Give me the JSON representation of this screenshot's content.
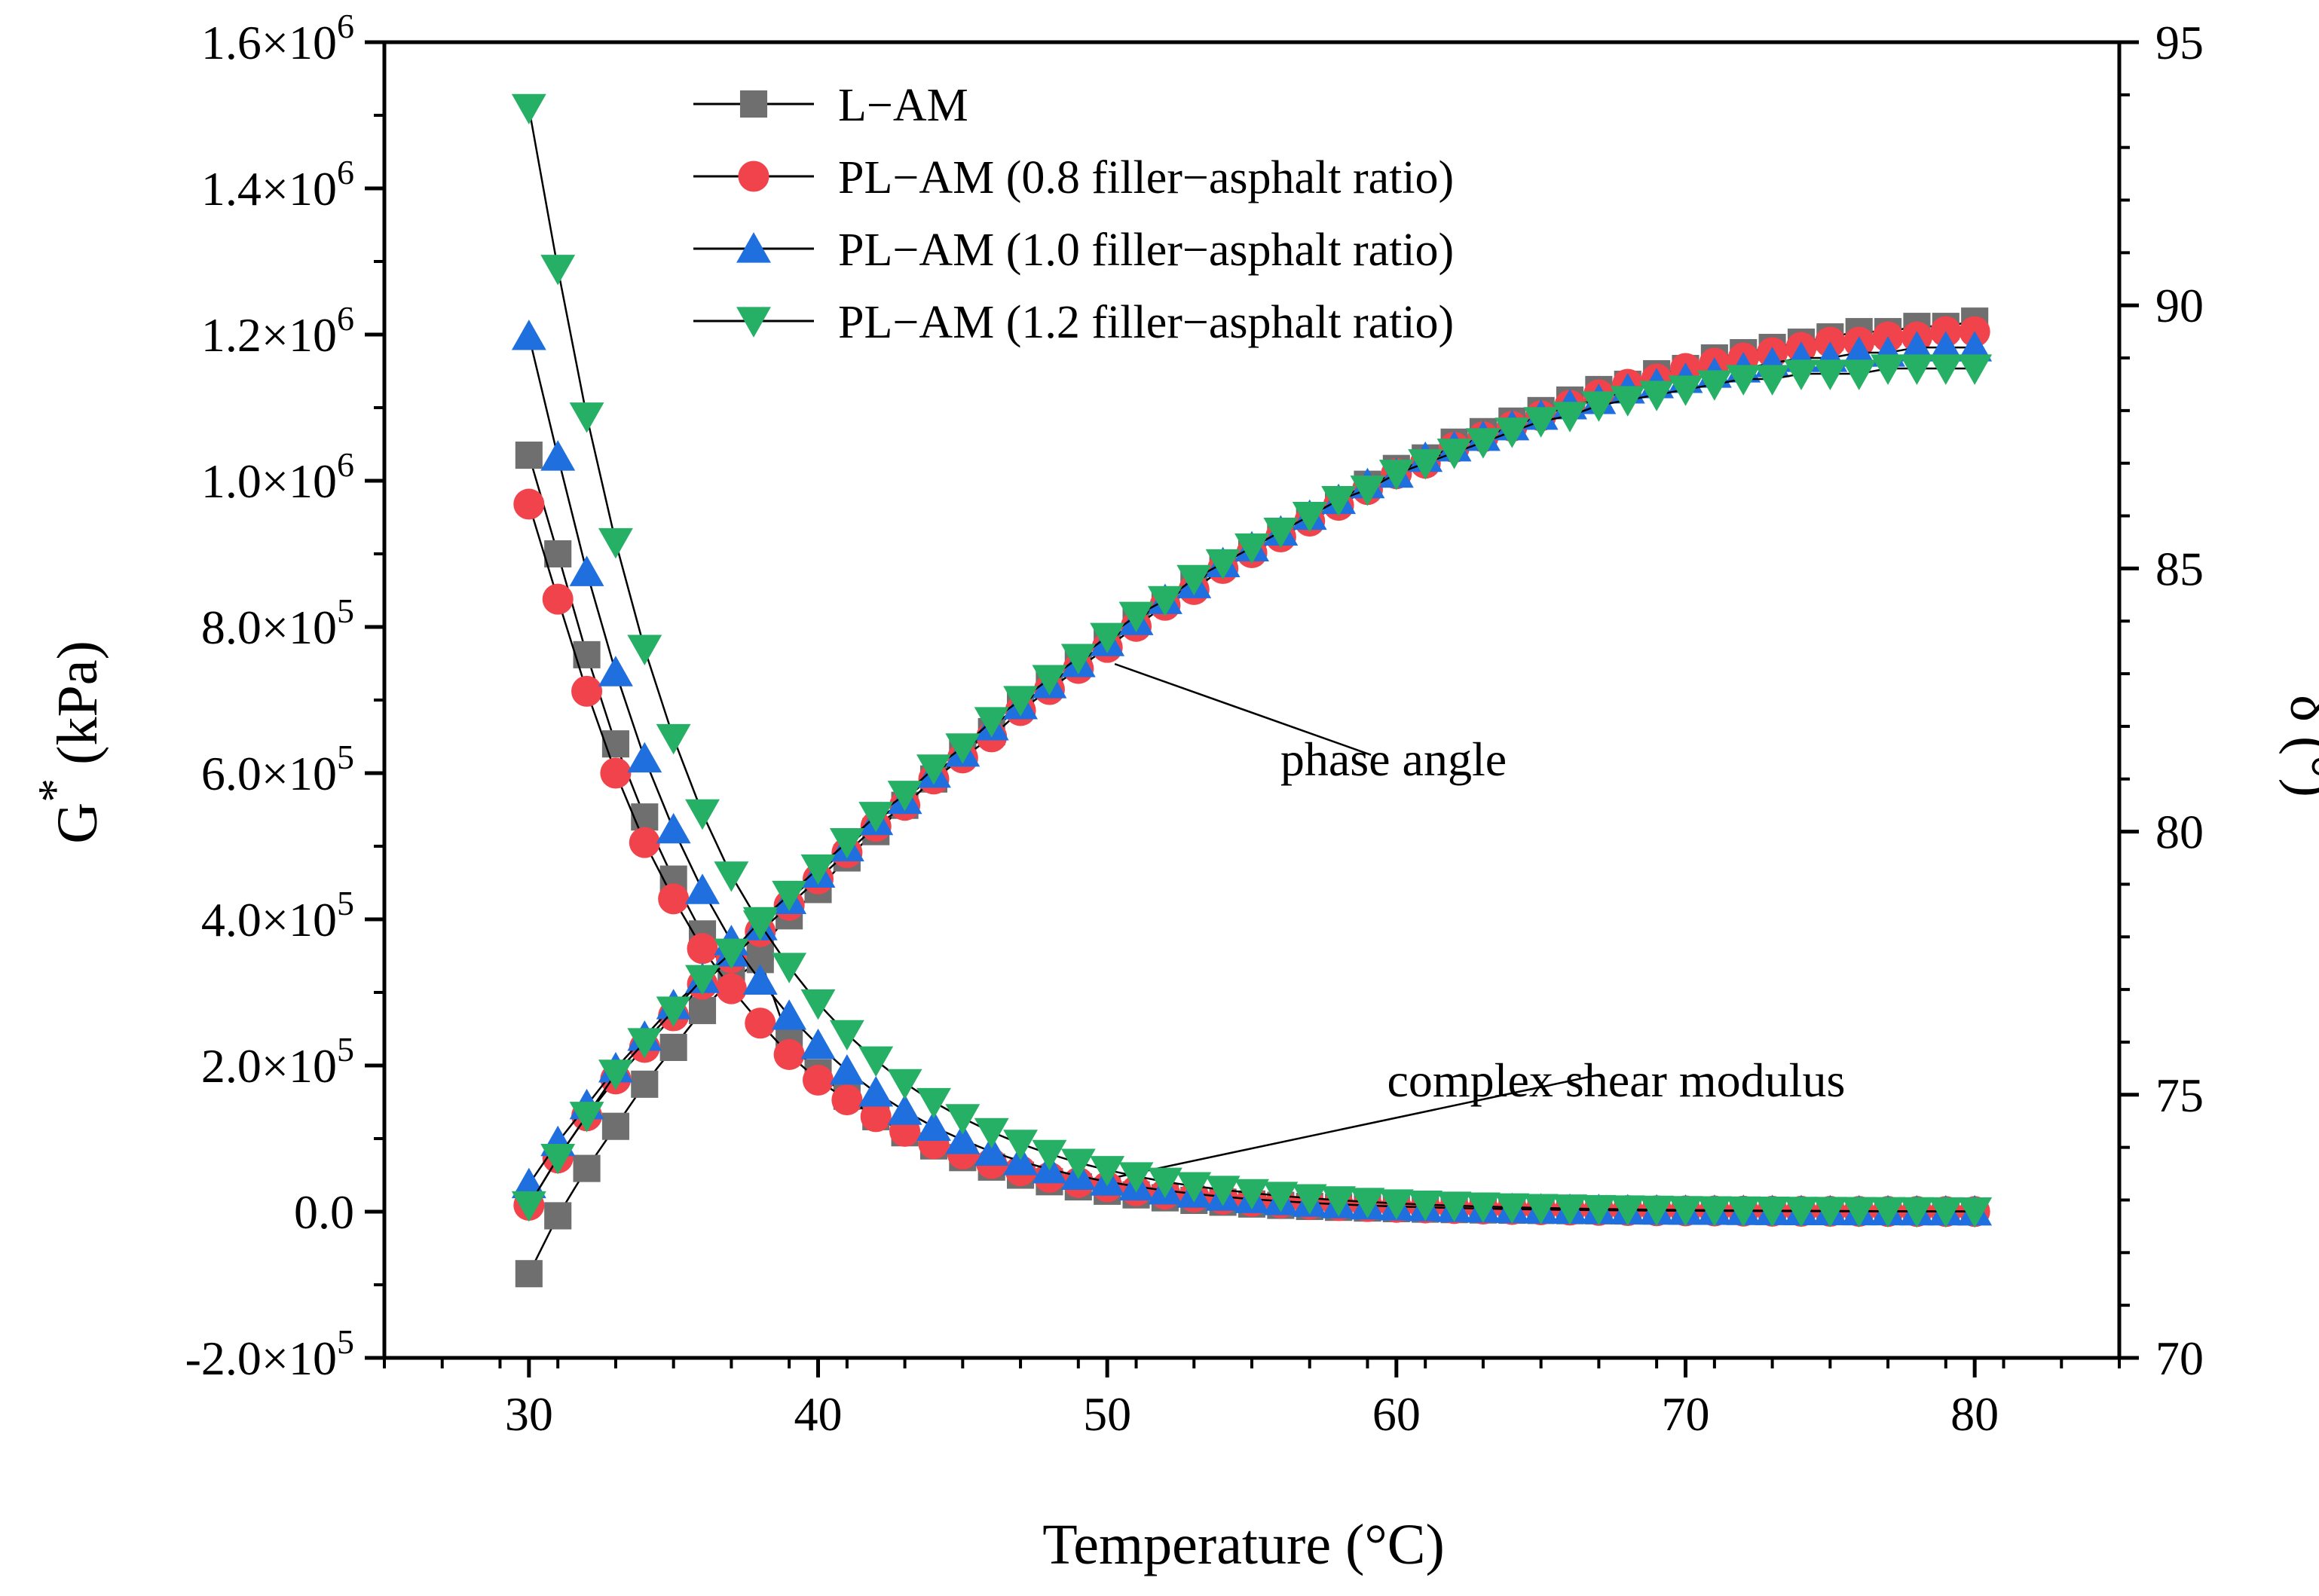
{
  "chart_data": {
    "type": "scatter",
    "xlabel": "Temperature (°C)",
    "ylabel_left": "G* (kPa)",
    "ylabel_left_base": "G",
    "ylabel_left_sup": "*",
    "ylabel_left_unit": "(kPa)",
    "ylabel_right": "δ (°)",
    "xlim": [
      25,
      85
    ],
    "ylim_left": [
      -200000,
      1600000
    ],
    "ylim_right": [
      70,
      95
    ],
    "x_ticks": [
      30,
      40,
      50,
      60,
      70,
      80
    ],
    "y_left_ticks": [
      {
        "mantissa": "-2.0",
        "exp": "5"
      },
      {
        "mantissa": "0.0",
        "exp": ""
      },
      {
        "mantissa": "2.0",
        "exp": "5"
      },
      {
        "mantissa": "4.0",
        "exp": "5"
      },
      {
        "mantissa": "6.0",
        "exp": "5"
      },
      {
        "mantissa": "8.0",
        "exp": "5"
      },
      {
        "mantissa": "1.0",
        "exp": "6"
      },
      {
        "mantissa": "1.2",
        "exp": "6"
      },
      {
        "mantissa": "1.4",
        "exp": "6"
      },
      {
        "mantissa": "1.6",
        "exp": "6"
      }
    ],
    "y_left_tick_values": [
      -200000,
      0,
      200000,
      400000,
      600000,
      800000,
      1000000,
      1200000,
      1400000,
      1600000
    ],
    "y_right_ticks": [
      70,
      75,
      80,
      85,
      90,
      95
    ],
    "legend_position": "top-center",
    "series": [
      {
        "name": "L−AM",
        "marker": "square",
        "color": "#6f6f6f",
        "G_star": {
          "x": [
            30,
            31,
            32,
            33,
            34,
            35,
            36,
            37,
            38,
            39,
            40,
            41,
            42,
            43,
            44,
            45,
            46,
            47,
            48,
            49,
            50,
            51,
            52,
            53,
            54,
            55,
            56,
            57,
            58,
            59,
            60,
            61,
            62,
            63,
            64,
            65,
            66,
            67,
            68,
            69,
            70,
            71,
            72,
            73,
            74,
            75,
            76,
            77,
            78,
            79,
            80
          ],
          "y": [
            1035000,
            900000,
            762000,
            640000,
            540000,
            455000,
            380000,
            315000,
            345000,
            232000,
            190000,
            158000,
            130000,
            108000,
            90000,
            74000,
            61000,
            50000,
            41000,
            34000,
            28000,
            23000,
            19000,
            15500,
            13000,
            10500,
            8700,
            7200,
            6000,
            5000,
            4200,
            3500,
            2900,
            2400,
            2000,
            1700,
            1400,
            1200,
            1000,
            850,
            700,
            600,
            500,
            430,
            370,
            310,
            270,
            230,
            200,
            170,
            150
          ]
        },
        "phase_angle": {
          "x": [
            30,
            31,
            32,
            33,
            34,
            35,
            36,
            37,
            38,
            39,
            40,
            41,
            42,
            43,
            44,
            45,
            46,
            47,
            48,
            49,
            50,
            51,
            52,
            53,
            54,
            55,
            56,
            57,
            58,
            59,
            60,
            61,
            62,
            63,
            64,
            65,
            66,
            67,
            68,
            69,
            70,
            71,
            72,
            73,
            74,
            75,
            76,
            77,
            78,
            79,
            80
          ],
          "y": [
            71.6,
            72.7,
            73.6,
            74.4,
            75.2,
            75.9,
            76.6,
            77.2,
            77.8,
            78.4,
            78.9,
            79.5,
            80.0,
            80.5,
            81.0,
            81.5,
            81.9,
            82.4,
            82.8,
            83.2,
            83.6,
            84.0,
            84.4,
            84.7,
            85.1,
            85.4,
            85.7,
            86.0,
            86.3,
            86.6,
            86.9,
            87.1,
            87.4,
            87.6,
            87.8,
            88.0,
            88.2,
            88.4,
            88.5,
            88.7,
            88.8,
            89.0,
            89.1,
            89.2,
            89.3,
            89.4,
            89.5,
            89.5,
            89.6,
            89.6,
            89.7
          ]
        }
      },
      {
        "name": "PL−AM (0.8 filler−asphalt ratio)",
        "marker": "circle",
        "color": "#f0434b",
        "G_star": {
          "x": [
            30,
            31,
            32,
            33,
            34,
            35,
            36,
            37,
            38,
            39,
            40,
            41,
            42,
            43,
            44,
            45,
            46,
            47,
            48,
            49,
            50,
            51,
            52,
            53,
            54,
            55,
            56,
            57,
            58,
            59,
            60,
            61,
            62,
            63,
            64,
            65,
            66,
            67,
            68,
            69,
            70,
            71,
            72,
            73,
            74,
            75,
            76,
            77,
            78,
            79,
            80
          ],
          "y": [
            968000,
            838000,
            712000,
            600000,
            505000,
            428000,
            360000,
            305000,
            258000,
            215000,
            180000,
            153000,
            130000,
            110000,
            93000,
            79000,
            66000,
            56000,
            47000,
            40000,
            34000,
            28500,
            24000,
            20000,
            17000,
            14200,
            11900,
            10000,
            8400,
            7100,
            6000,
            5100,
            4300,
            3600,
            3000,
            2600,
            2200,
            1800,
            1550,
            1300,
            1100,
            950,
            800,
            680,
            580,
            490,
            420,
            360,
            310,
            270,
            230
          ]
        },
        "phase_angle": {
          "x": [
            30,
            31,
            32,
            33,
            34,
            35,
            36,
            37,
            38,
            39,
            40,
            41,
            42,
            43,
            44,
            45,
            46,
            47,
            48,
            49,
            50,
            51,
            52,
            53,
            54,
            55,
            56,
            57,
            58,
            59,
            60,
            61,
            62,
            63,
            64,
            65,
            66,
            67,
            68,
            69,
            70,
            71,
            72,
            73,
            74,
            75,
            76,
            77,
            78,
            79,
            80
          ],
          "y": [
            72.9,
            73.8,
            74.6,
            75.3,
            75.9,
            76.5,
            77.1,
            77.6,
            78.1,
            78.6,
            79.1,
            79.6,
            80.1,
            80.5,
            81.0,
            81.4,
            81.8,
            82.3,
            82.7,
            83.1,
            83.5,
            83.9,
            84.3,
            84.6,
            85.0,
            85.3,
            85.6,
            85.9,
            86.2,
            86.5,
            86.8,
            87.0,
            87.3,
            87.5,
            87.7,
            87.9,
            88.1,
            88.3,
            88.5,
            88.6,
            88.8,
            88.9,
            89.0,
            89.1,
            89.2,
            89.3,
            89.3,
            89.4,
            89.4,
            89.5,
            89.5
          ]
        }
      },
      {
        "name": "PL−AM (1.0 filler−asphalt ratio)",
        "marker": "triangle-up",
        "color": "#1f6fde",
        "G_star": {
          "x": [
            30,
            31,
            32,
            33,
            34,
            35,
            36,
            37,
            38,
            39,
            40,
            41,
            42,
            43,
            44,
            45,
            46,
            47,
            48,
            49,
            50,
            51,
            52,
            53,
            54,
            55,
            56,
            57,
            58,
            59,
            60,
            61,
            62,
            63,
            64,
            65,
            66,
            67,
            68,
            69,
            70,
            71,
            72,
            73,
            74,
            75,
            76,
            77,
            78,
            79,
            80
          ],
          "y": [
            1198000,
            1033000,
            875000,
            738000,
            620000,
            523000,
            440000,
            370000,
            316000,
            268000,
            228000,
            193000,
            163000,
            138000,
            116000,
            98000,
            82000,
            69000,
            58000,
            49000,
            41000,
            34500,
            29000,
            24500,
            20500,
            17200,
            14400,
            12100,
            10100,
            8500,
            7100,
            6000,
            5000,
            4200,
            3500,
            2950,
            2500,
            2100,
            1750,
            1480,
            1250,
            1060,
            900,
            760,
            650,
            550,
            470,
            400,
            340,
            290,
            250
          ]
        },
        "phase_angle": {
          "x": [
            30,
            31,
            32,
            33,
            34,
            35,
            36,
            37,
            38,
            39,
            40,
            41,
            42,
            43,
            44,
            45,
            46,
            47,
            48,
            49,
            50,
            51,
            52,
            53,
            54,
            55,
            56,
            57,
            58,
            59,
            60,
            61,
            62,
            63,
            64,
            65,
            66,
            67,
            68,
            69,
            70,
            71,
            72,
            73,
            74,
            75,
            76,
            77,
            78,
            79,
            80
          ],
          "y": [
            73.3,
            74.1,
            74.8,
            75.5,
            76.1,
            76.7,
            77.2,
            77.7,
            78.2,
            78.7,
            79.2,
            79.7,
            80.2,
            80.6,
            81.1,
            81.5,
            82.0,
            82.4,
            82.8,
            83.2,
            83.6,
            84.0,
            84.4,
            84.7,
            85.1,
            85.4,
            85.7,
            86.0,
            86.3,
            86.6,
            86.8,
            87.1,
            87.3,
            87.5,
            87.7,
            87.9,
            88.1,
            88.2,
            88.4,
            88.5,
            88.6,
            88.7,
            88.8,
            88.9,
            89.0,
            89.0,
            89.1,
            89.1,
            89.2,
            89.2,
            89.2
          ]
        }
      },
      {
        "name": "PL−AM (1.2 filler−asphalt ratio)",
        "marker": "triangle-down",
        "color": "#25b065",
        "G_star": {
          "x": [
            30,
            31,
            32,
            33,
            34,
            35,
            36,
            37,
            38,
            39,
            40,
            41,
            42,
            43,
            44,
            45,
            46,
            47,
            48,
            49,
            50,
            51,
            52,
            53,
            54,
            55,
            56,
            57,
            58,
            59,
            60,
            61,
            62,
            63,
            64,
            65,
            66,
            67,
            68,
            69,
            70,
            71,
            72,
            73,
            74,
            75,
            76,
            77,
            78,
            79,
            80
          ],
          "y": [
            1510000,
            1290000,
            1088000,
            916000,
            770000,
            648000,
            545000,
            460000,
            393000,
            335000,
            285000,
            243000,
            207000,
            176000,
            150000,
            128000,
            109000,
            93000,
            79000,
            67000,
            57000,
            48500,
            41000,
            35000,
            30000,
            25500,
            21700,
            18500,
            15700,
            13400,
            11400,
            9700,
            8300,
            7100,
            6000,
            5100,
            4400,
            3700,
            3200,
            2700,
            2300,
            2000,
            1700,
            1450,
            1230,
            1050,
            900,
            770,
            660,
            560,
            480
          ]
        },
        "phase_angle": {
          "x": [
            30,
            31,
            32,
            33,
            34,
            35,
            36,
            37,
            38,
            39,
            40,
            41,
            42,
            43,
            44,
            45,
            46,
            47,
            48,
            49,
            50,
            51,
            52,
            53,
            54,
            55,
            56,
            57,
            58,
            59,
            60,
            61,
            62,
            63,
            64,
            65,
            66,
            67,
            68,
            69,
            70,
            71,
            72,
            73,
            74,
            75,
            76,
            77,
            78,
            79,
            80
          ],
          "y": [
            72.9,
            73.8,
            74.6,
            75.4,
            76.0,
            76.6,
            77.2,
            77.7,
            78.3,
            78.8,
            79.3,
            79.8,
            80.3,
            80.7,
            81.2,
            81.6,
            82.1,
            82.5,
            82.9,
            83.3,
            83.7,
            84.1,
            84.4,
            84.8,
            85.1,
            85.4,
            85.7,
            86.0,
            86.3,
            86.5,
            86.8,
            87.0,
            87.2,
            87.4,
            87.6,
            87.8,
            87.9,
            88.1,
            88.2,
            88.3,
            88.4,
            88.5,
            88.6,
            88.6,
            88.7,
            88.7,
            88.7,
            88.8,
            88.8,
            88.8,
            88.8
          ]
        }
      }
    ],
    "annotations": [
      {
        "text": "phase angle",
        "at_x": 50,
        "at_right_y": 83.3,
        "text_x": 59.9,
        "text_right_y": 81.1
      },
      {
        "text": "complex shear modulus",
        "at_x": 50,
        "at_left_y": 55000,
        "text_x": 67.6,
        "text_left_y": 160000
      }
    ]
  }
}
